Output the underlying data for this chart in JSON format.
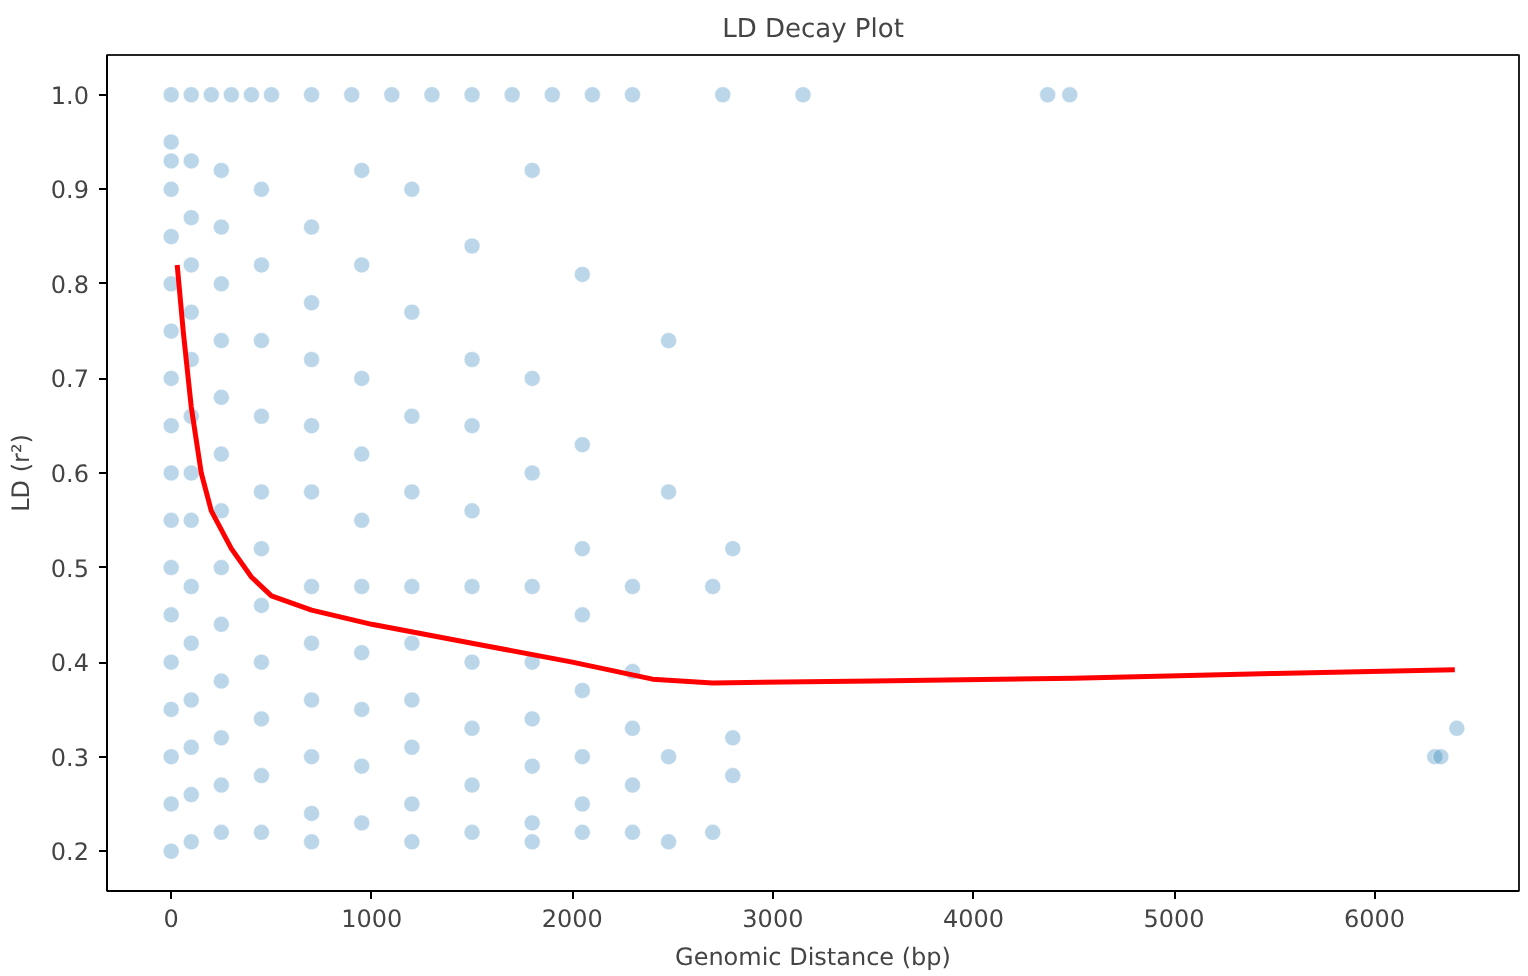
{
  "chart_data": {
    "type": "scatter",
    "title": "LD Decay Plot",
    "xlabel": "Genomic Distance (bp)",
    "ylabel": "LD (r²)",
    "xlim": [
      -320,
      6720
    ],
    "ylim": [
      0.158,
      1.042
    ],
    "xticks": [
      0,
      1000,
      2000,
      3000,
      4000,
      5000,
      6000
    ],
    "yticks": [
      0.2,
      0.3,
      0.4,
      0.5,
      0.6,
      0.7,
      0.8,
      0.9,
      {
        "value": 1.0,
        "label": "1.0"
      }
    ],
    "grid": false,
    "series": [
      {
        "color": "#1f77b4",
        "marker": "circle",
        "x": [
          0,
          100,
          200,
          300,
          400,
          500,
          700,
          900,
          1100,
          1300,
          1500,
          1700,
          1900,
          2100,
          2300,
          2750,
          3150,
          4370,
          4480,
          0,
          0,
          0,
          0,
          0,
          0,
          0,
          0,
          0,
          0,
          0,
          0,
          0,
          0,
          0,
          0,
          0,
          100,
          100,
          100,
          100,
          100,
          100,
          100,
          100,
          100,
          100,
          100,
          100,
          100,
          100,
          250,
          250,
          250,
          250,
          250,
          250,
          250,
          250,
          250,
          250,
          250,
          250,
          250,
          450,
          450,
          450,
          450,
          450,
          450,
          450,
          450,
          450,
          450,
          450,
          700,
          700,
          700,
          700,
          700,
          700,
          700,
          700,
          700,
          700,
          700,
          950,
          950,
          950,
          950,
          950,
          950,
          950,
          950,
          950,
          950,
          1200,
          1200,
          1200,
          1200,
          1200,
          1200,
          1200,
          1200,
          1200,
          1200,
          1500,
          1500,
          1500,
          1500,
          1500,
          1500,
          1500,
          1500,
          1500,
          1800,
          1800,
          1800,
          1800,
          1800,
          1800,
          1800,
          1800,
          1800,
          2050,
          2050,
          2050,
          2050,
          2050,
          2050,
          2050,
          2050,
          2300,
          2300,
          2300,
          2300,
          2300,
          2480,
          2480,
          2480,
          2480,
          2700,
          2700,
          2800,
          2800,
          2800,
          6300,
          6330,
          6410
        ],
        "values": [
          1,
          1,
          1,
          1,
          1,
          1,
          1,
          1,
          1,
          1,
          1,
          1,
          1,
          1,
          1,
          1,
          1,
          1,
          1,
          0.95,
          0.93,
          0.9,
          0.85,
          0.8,
          0.75,
          0.7,
          0.65,
          0.6,
          0.55,
          0.5,
          0.45,
          0.4,
          0.35,
          0.3,
          0.25,
          0.2,
          0.93,
          0.87,
          0.82,
          0.77,
          0.72,
          0.66,
          0.6,
          0.55,
          0.48,
          0.42,
          0.36,
          0.31,
          0.26,
          0.21,
          0.92,
          0.86,
          0.8,
          0.74,
          0.68,
          0.62,
          0.56,
          0.5,
          0.44,
          0.38,
          0.32,
          0.27,
          0.22,
          0.9,
          0.82,
          0.74,
          0.66,
          0.58,
          0.52,
          0.46,
          0.4,
          0.34,
          0.28,
          0.22,
          0.86,
          0.78,
          0.72,
          0.65,
          0.58,
          0.48,
          0.42,
          0.36,
          0.3,
          0.24,
          0.21,
          0.92,
          0.82,
          0.7,
          0.62,
          0.55,
          0.48,
          0.41,
          0.35,
          0.29,
          0.23,
          0.9,
          0.77,
          0.66,
          0.58,
          0.48,
          0.42,
          0.36,
          0.31,
          0.25,
          0.21,
          0.84,
          0.72,
          0.65,
          0.56,
          0.48,
          0.4,
          0.33,
          0.27,
          0.22,
          0.92,
          0.7,
          0.6,
          0.48,
          0.4,
          0.34,
          0.29,
          0.23,
          0.21,
          0.81,
          0.63,
          0.52,
          0.45,
          0.37,
          0.3,
          0.25,
          0.22,
          0.48,
          0.39,
          0.33,
          0.27,
          0.22,
          0.74,
          0.58,
          0.3,
          0.21,
          0.48,
          0.22,
          0.52,
          0.32,
          0.28,
          0.3,
          0.3,
          0.33
        ]
      },
      {
        "type": "line",
        "color": "#ff0000",
        "marker": "none",
        "line_style": "solid",
        "x": [
          30,
          60,
          100,
          150,
          200,
          300,
          400,
          500,
          700,
          1000,
          1500,
          2000,
          2400,
          2700,
          3500,
          4500,
          5500,
          6400
        ],
        "values": [
          0.82,
          0.75,
          0.67,
          0.6,
          0.56,
          0.52,
          0.49,
          0.47,
          0.455,
          0.44,
          0.42,
          0.4,
          0.382,
          0.378,
          0.38,
          0.383,
          0.388,
          0.392
        ]
      }
    ]
  }
}
